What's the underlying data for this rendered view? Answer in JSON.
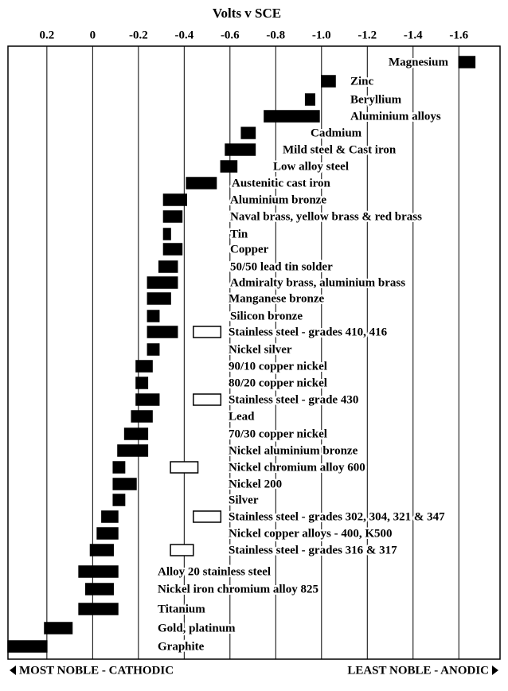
{
  "chart_data": {
    "type": "range-bar",
    "title": "Volts v SCE",
    "xlim": [
      0.37,
      -1.78
    ],
    "xticks": [
      0.2,
      0,
      -0.2,
      -0.4,
      -0.6,
      -0.8,
      {
        "value": -1,
        "label": "-1.0"
      },
      -1.2,
      -1.4,
      -1.6
    ],
    "grid": true,
    "categories": [
      "Magnesium",
      "Zinc",
      "Beryllium",
      "Aluminium alloys",
      "Cadmium",
      "Mild steel & Cast iron",
      "Low alloy steel",
      "Austenitic cast iron",
      "Aluminium bronze",
      "Naval brass, yellow brass & red brass",
      "Tin",
      "Copper",
      "50/50 lead tin solder",
      "Admiralty brass, aluminium brass",
      "Manganese bronze",
      "Silicon bronze",
      "Stainless steel  - grades 410, 416",
      "Nickel silver",
      "90/10 copper nickel",
      "80/20 copper nickel",
      "Stainless steel  - grade 430",
      "Lead",
      "70/30 copper nickel",
      "Nickel aluminium bronze",
      "Nickel chromium alloy 600",
      "Nickel 200",
      "Silver",
      "Stainless steel - grades 302, 304, 321 & 347",
      "Nickel copper  alloys - 400, K500",
      "Stainless steel - grades 316 & 317",
      "Alloy 20 stainless steel",
      "Nickel iron chromium alloy 825",
      "Titanium",
      "Gold, platinum",
      "Graphite"
    ],
    "series": [
      {
        "color": "#000000",
        "values": [
          [
            -1.6,
            -1.67
          ],
          [
            -1.0,
            -1.06
          ],
          [
            -0.93,
            -0.97
          ],
          [
            -0.75,
            -0.99
          ],
          [
            -0.65,
            -0.71
          ],
          [
            -0.58,
            -0.71
          ],
          [
            -0.56,
            -0.63
          ],
          [
            -0.41,
            -0.54
          ],
          [
            -0.31,
            -0.41
          ],
          [
            -0.31,
            -0.39
          ],
          [
            -0.31,
            -0.34
          ],
          [
            -0.31,
            -0.39
          ],
          [
            -0.29,
            -0.37
          ],
          [
            -0.24,
            -0.37
          ],
          [
            -0.24,
            -0.34
          ],
          [
            -0.24,
            -0.29
          ],
          [
            -0.24,
            -0.37
          ],
          [
            -0.24,
            -0.29
          ],
          [
            -0.19,
            -0.26
          ],
          [
            -0.19,
            -0.24
          ],
          [
            -0.19,
            -0.29
          ],
          [
            -0.17,
            -0.26
          ],
          [
            -0.14,
            -0.24
          ],
          [
            -0.11,
            -0.24
          ],
          [
            -0.09,
            -0.14
          ],
          [
            -0.09,
            -0.19
          ],
          [
            -0.09,
            -0.14
          ],
          [
            -0.04,
            -0.11
          ],
          [
            -0.02,
            -0.11
          ],
          [
            0.01,
            -0.09
          ],
          [
            0.06,
            -0.11
          ],
          [
            0.03,
            -0.09
          ],
          [
            0.06,
            -0.11
          ],
          [
            0.21,
            0.09
          ],
          [
            0.37,
            0.2
          ]
        ]
      },
      {
        "color": "#ffffff",
        "values": [
          null,
          null,
          null,
          null,
          null,
          null,
          null,
          null,
          null,
          null,
          null,
          null,
          null,
          null,
          null,
          null,
          [
            -0.44,
            -0.56
          ],
          null,
          null,
          null,
          [
            -0.44,
            -0.56
          ],
          null,
          null,
          null,
          [
            -0.34,
            -0.46
          ],
          null,
          null,
          [
            -0.44,
            -0.56
          ],
          null,
          [
            -0.34,
            -0.44
          ],
          null,
          null,
          null,
          null,
          null
        ]
      }
    ],
    "left_label": "MOST NOBLE - CATHODIC",
    "right_label": "LEAST NOBLE - ANODIC"
  }
}
